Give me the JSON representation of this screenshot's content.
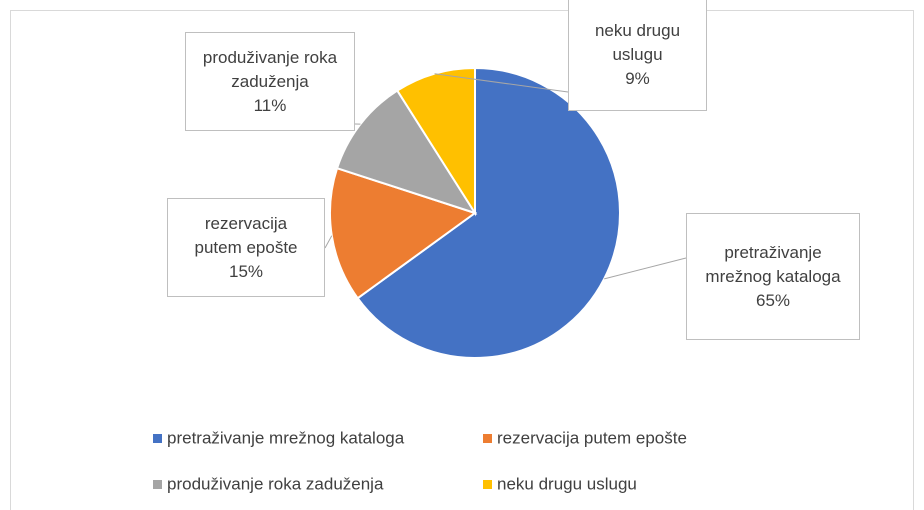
{
  "chart_data": {
    "type": "pie",
    "categories": [
      "pretraživanje mrežnog kataloga",
      "rezervacija putem epošte",
      "produživanje roka zaduženja",
      "neku drugu uslugu"
    ],
    "values": [
      65,
      15,
      11,
      9
    ],
    "value_labels": [
      "65%",
      "15%",
      "11%",
      "9%"
    ],
    "colors": [
      "#4472c4",
      "#ed7d31",
      "#a5a5a5",
      "#ffc000"
    ],
    "legend": "bottom"
  }
}
